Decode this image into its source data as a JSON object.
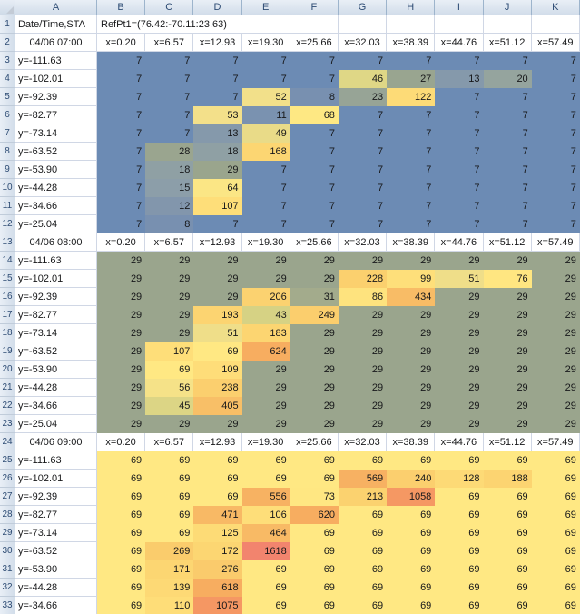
{
  "grid": {
    "column_letters": [
      "A",
      "B",
      "C",
      "D",
      "E",
      "F",
      "G",
      "H",
      "I",
      "J",
      "K"
    ],
    "row_numbers": [
      1,
      2,
      3,
      4,
      5,
      6,
      7,
      8,
      9,
      10,
      11,
      12,
      13,
      14,
      15,
      16,
      17,
      18,
      19,
      20,
      21,
      22,
      23,
      24,
      25,
      26,
      27,
      28,
      29,
      30,
      31,
      32,
      33
    ],
    "title_row": {
      "a_text": "Date/Time,STA",
      "b_text": "RefPt1=(76.42:-70.11:23.63)"
    },
    "x_headers": [
      "x=0.20",
      "x=6.57",
      "x=12.93",
      "x=19.30",
      "x=25.66",
      "x=32.03",
      "x=38.39",
      "x=44.76",
      "x=51.12",
      "x=57.49"
    ],
    "y_labels": [
      "y=-111.63",
      "y=-102.01",
      "y=-92.39",
      "y=-82.77",
      "y=-73.14",
      "y=-63.52",
      "y=-53.90",
      "y=-44.28",
      "y=-34.66",
      "y=-25.04"
    ],
    "blocks": [
      {
        "date": "04/06 07:00",
        "values": [
          [
            7,
            7,
            7,
            7,
            7,
            7,
            7,
            7,
            7,
            7
          ],
          [
            7,
            7,
            7,
            7,
            7,
            46,
            27,
            13,
            20,
            7
          ],
          [
            7,
            7,
            7,
            52,
            8,
            23,
            122,
            7,
            7,
            7
          ],
          [
            7,
            7,
            53,
            11,
            68,
            7,
            7,
            7,
            7,
            7
          ],
          [
            7,
            7,
            13,
            49,
            7,
            7,
            7,
            7,
            7,
            7
          ],
          [
            7,
            28,
            18,
            168,
            7,
            7,
            7,
            7,
            7,
            7
          ],
          [
            7,
            18,
            29,
            7,
            7,
            7,
            7,
            7,
            7,
            7
          ],
          [
            7,
            15,
            64,
            7,
            7,
            7,
            7,
            7,
            7,
            7
          ],
          [
            7,
            12,
            107,
            7,
            7,
            7,
            7,
            7,
            7,
            7
          ],
          [
            7,
            8,
            7,
            7,
            7,
            7,
            7,
            7,
            7,
            7
          ]
        ]
      },
      {
        "date": "04/06 08:00",
        "values": [
          [
            29,
            29,
            29,
            29,
            29,
            29,
            29,
            29,
            29,
            29
          ],
          [
            29,
            29,
            29,
            29,
            29,
            228,
            99,
            51,
            76,
            29
          ],
          [
            29,
            29,
            29,
            206,
            31,
            86,
            434,
            29,
            29,
            29
          ],
          [
            29,
            29,
            193,
            43,
            249,
            29,
            29,
            29,
            29,
            29
          ],
          [
            29,
            29,
            51,
            183,
            29,
            29,
            29,
            29,
            29,
            29
          ],
          [
            29,
            107,
            69,
            624,
            29,
            29,
            29,
            29,
            29,
            29
          ],
          [
            29,
            69,
            109,
            29,
            29,
            29,
            29,
            29,
            29,
            29
          ],
          [
            29,
            56,
            238,
            29,
            29,
            29,
            29,
            29,
            29,
            29
          ],
          [
            29,
            45,
            405,
            29,
            29,
            29,
            29,
            29,
            29,
            29
          ],
          [
            29,
            29,
            29,
            29,
            29,
            29,
            29,
            29,
            29,
            29
          ]
        ]
      },
      {
        "date": "04/06 09:00",
        "values": [
          [
            69,
            69,
            69,
            69,
            69,
            69,
            69,
            69,
            69,
            69
          ],
          [
            69,
            69,
            69,
            69,
            69,
            569,
            240,
            128,
            188,
            69
          ],
          [
            69,
            69,
            69,
            556,
            73,
            213,
            1058,
            69,
            69,
            69
          ],
          [
            69,
            69,
            471,
            106,
            620,
            69,
            69,
            69,
            69,
            69
          ],
          [
            69,
            69,
            125,
            464,
            69,
            69,
            69,
            69,
            69,
            69
          ],
          [
            69,
            269,
            172,
            1618,
            69,
            69,
            69,
            69,
            69,
            69
          ],
          [
            69,
            171,
            276,
            69,
            69,
            69,
            69,
            69,
            69,
            69
          ],
          [
            69,
            139,
            618,
            69,
            69,
            69,
            69,
            69,
            69,
            69
          ],
          [
            69,
            110,
            1075,
            69,
            69,
            69,
            69,
            69,
            69,
            69
          ]
        ]
      }
    ],
    "color_scale": {
      "stops": [
        {
          "v": 7,
          "color": "#6C8BB4"
        },
        {
          "v": 8,
          "color": "#7890B0"
        },
        {
          "v": 11,
          "color": "#7A92B0"
        },
        {
          "v": 12,
          "color": "#8296AC"
        },
        {
          "v": 15,
          "color": "#8C9EA9"
        },
        {
          "v": 18,
          "color": "#8FA0A4"
        },
        {
          "v": 20,
          "color": "#95A49E"
        },
        {
          "v": 23,
          "color": "#97A496"
        },
        {
          "v": 27,
          "color": "#99A590"
        },
        {
          "v": 29,
          "color": "#9AA58D"
        },
        {
          "v": 43,
          "color": "#D6D284"
        },
        {
          "v": 52,
          "color": "#F2E08A"
        },
        {
          "v": 69,
          "color": "#FFE883"
        },
        {
          "v": 99,
          "color": "#FEDF7A"
        },
        {
          "v": 128,
          "color": "#FDDA76"
        },
        {
          "v": 172,
          "color": "#FCD672"
        },
        {
          "v": 228,
          "color": "#FBD06E"
        },
        {
          "v": 276,
          "color": "#FACB6C"
        },
        {
          "v": 434,
          "color": "#F8BC66"
        },
        {
          "v": 624,
          "color": "#F7AD60"
        },
        {
          "v": 1075,
          "color": "#F59763"
        },
        {
          "v": 1618,
          "color": "#F2846E"
        }
      ]
    }
  }
}
